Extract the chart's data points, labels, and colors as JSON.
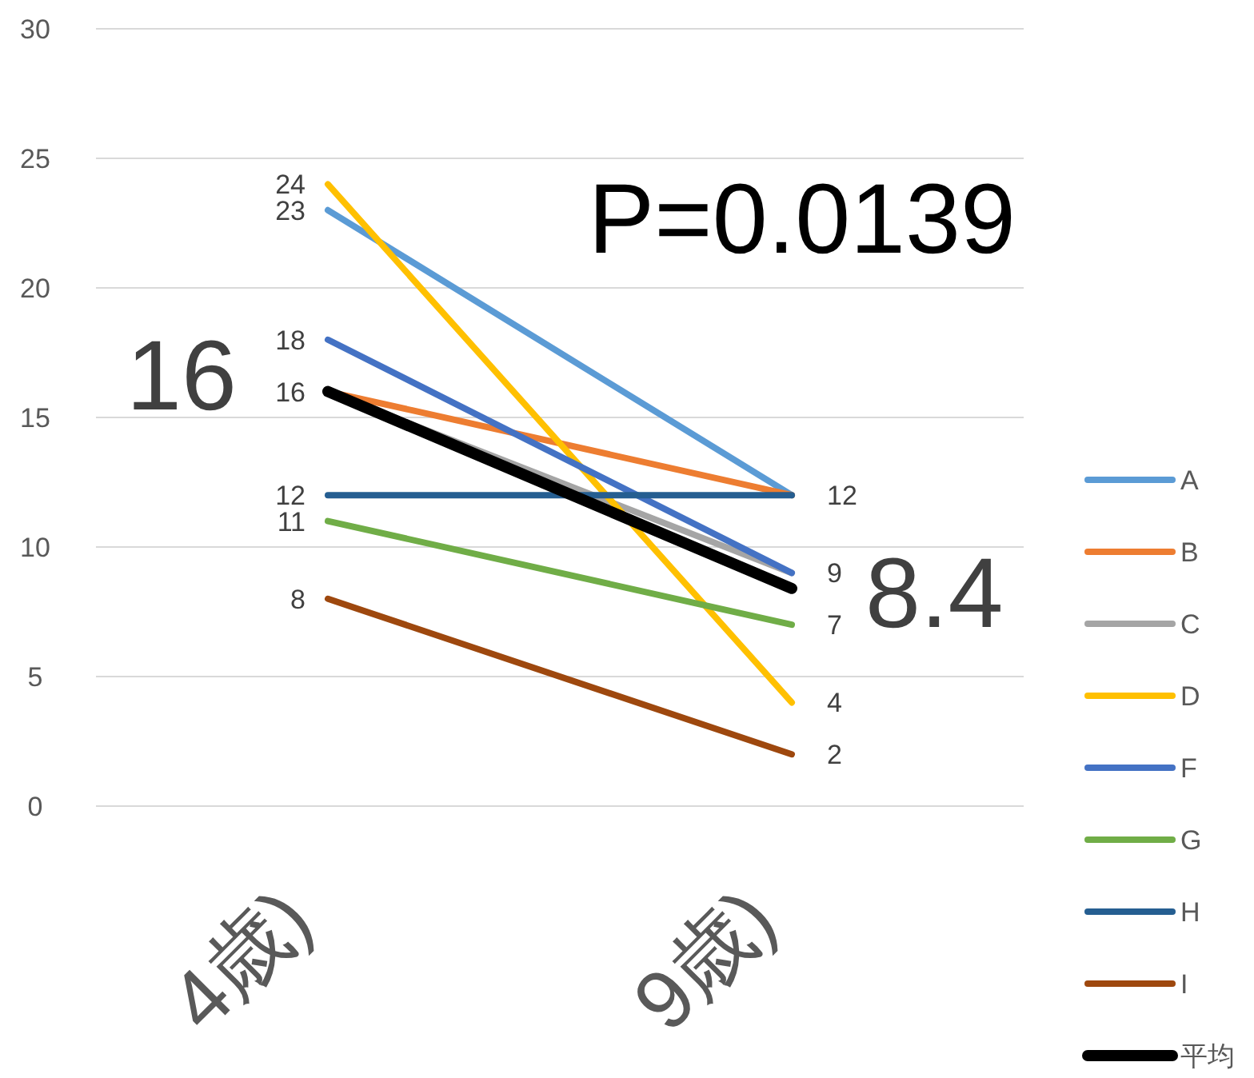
{
  "chart_data": {
    "type": "line",
    "categories": [
      "4歳)",
      "9歳)"
    ],
    "ylim": [
      0,
      30
    ],
    "yticks": [
      0,
      5,
      10,
      15,
      20,
      25,
      30
    ],
    "grid": "y",
    "legend": "right",
    "marker": "none",
    "line_style": "solid",
    "series": [
      {
        "name": "A",
        "color": "#5b9bd5",
        "values": [
          23,
          12
        ],
        "value_labels": [
          "23",
          null
        ]
      },
      {
        "name": "B",
        "color": "#ed7d31",
        "values": [
          16,
          12
        ],
        "value_labels": [
          "16",
          "12"
        ]
      },
      {
        "name": "C",
        "color": "#a5a5a5",
        "values": [
          16,
          9
        ],
        "value_labels": [
          null,
          null
        ]
      },
      {
        "name": "D",
        "color": "#ffc000",
        "values": [
          24,
          4
        ],
        "value_labels": [
          "24",
          "4"
        ]
      },
      {
        "name": "F",
        "color": "#4472c4",
        "values": [
          18,
          9
        ],
        "value_labels": [
          "18",
          "9"
        ]
      },
      {
        "name": "G",
        "color": "#70ad47",
        "values": [
          11,
          7
        ],
        "value_labels": [
          "11",
          "7"
        ]
      },
      {
        "name": "H",
        "color": "#255e91",
        "values": [
          12,
          12
        ],
        "value_labels": [
          "12",
          null
        ]
      },
      {
        "name": "I",
        "color": "#9e480e",
        "values": [
          8,
          2
        ],
        "value_labels": [
          "8",
          "2"
        ]
      },
      {
        "name": "平均",
        "color": "#000000",
        "values": [
          16,
          8.4
        ]
      }
    ],
    "annotations": [
      "16",
      "8.4",
      "P=0.0139"
    ]
  }
}
